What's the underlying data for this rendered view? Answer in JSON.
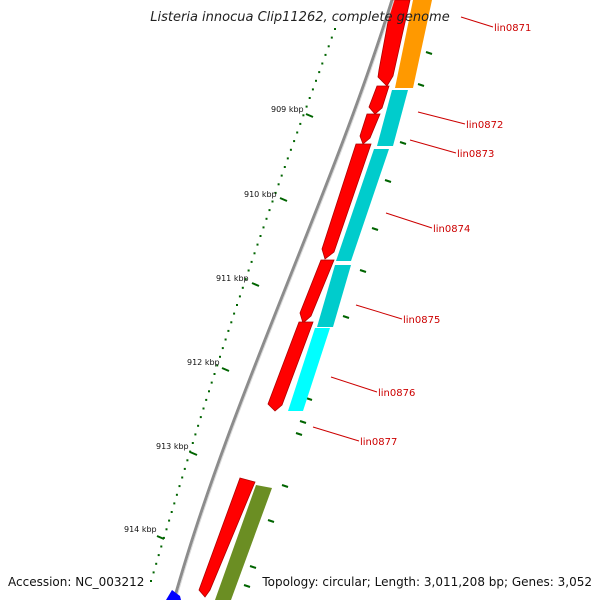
{
  "title": "Listeria innocua Clip11262, complete genome",
  "accession": "Accession: NC_003212",
  "summary": "Topology: circular; Length: 3,011,208 bp; Genes: 3,052",
  "ticks": [
    {
      "label": "909 kbp"
    },
    {
      "label": "910 kbp"
    },
    {
      "label": "911 kbp"
    },
    {
      "label": "912 kbp"
    },
    {
      "label": "913 kbp"
    },
    {
      "label": "914 kbp"
    }
  ],
  "genes": [
    {
      "label": "lin0871"
    },
    {
      "label": "lin0872"
    },
    {
      "label": "lin0873"
    },
    {
      "label": "lin0874"
    },
    {
      "label": "lin0875"
    },
    {
      "label": "lin0876"
    },
    {
      "label": "lin0877"
    }
  ],
  "colors": {
    "backbone": "#8c8c8c",
    "cds": "#ff0000",
    "cog_orange": "#ff9900",
    "cog_cyan": "#00cccc",
    "cog_cyan_light": "#00ffff",
    "cog_olive": "#6b8e23",
    "tick": "#006400",
    "gene_label": "#cc0000",
    "marker": "#0000ff"
  }
}
